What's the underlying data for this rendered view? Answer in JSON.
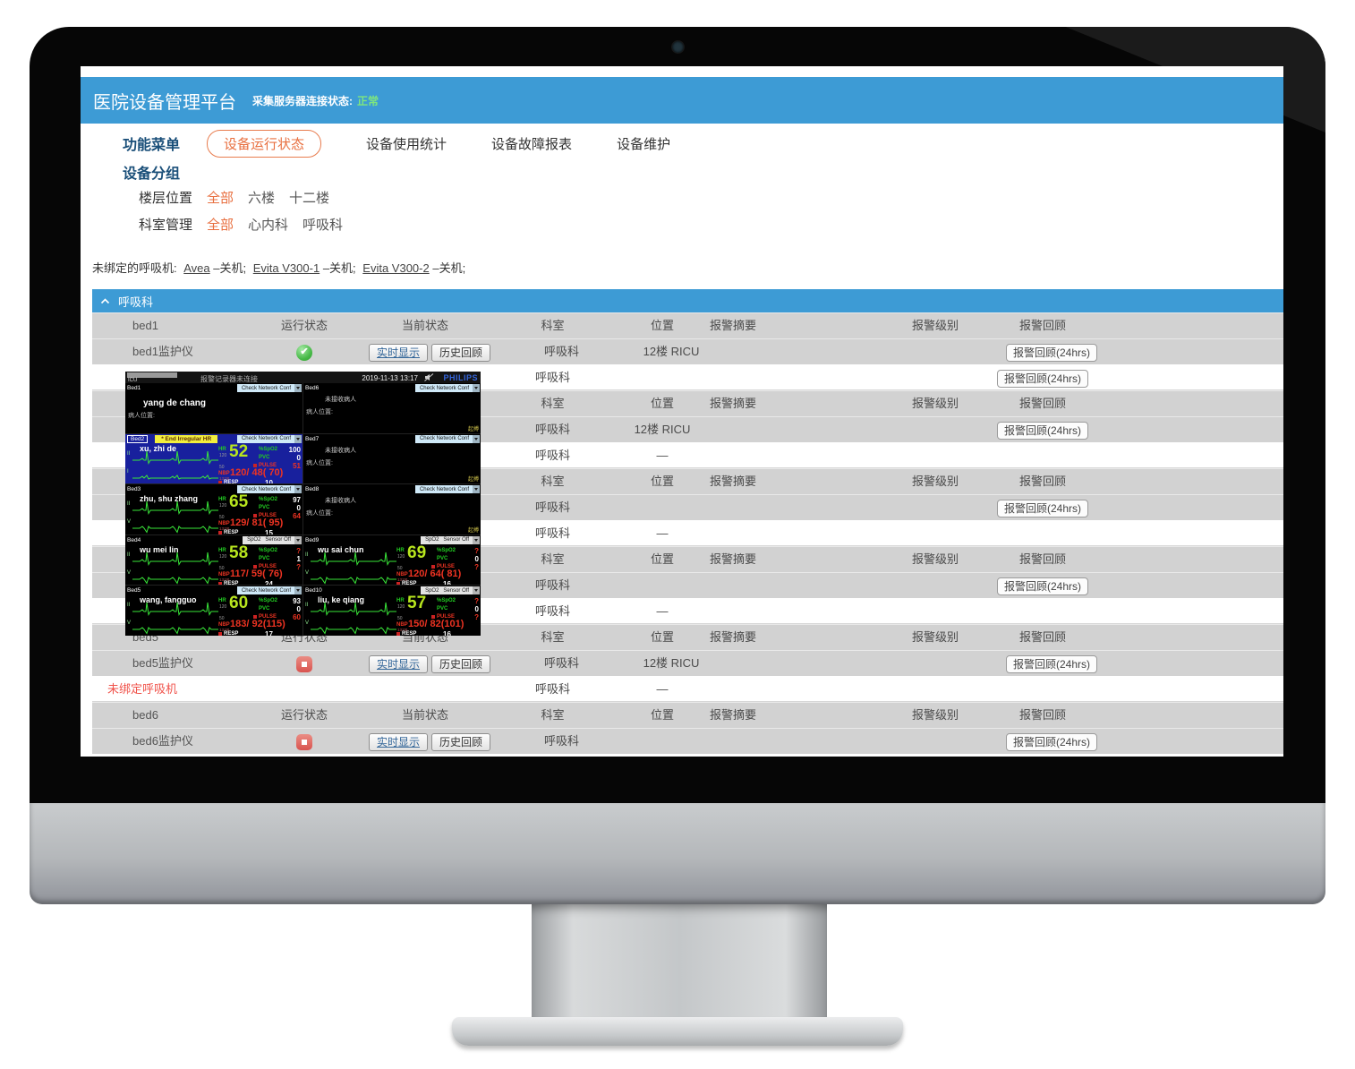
{
  "app": {
    "title": "医院设备管理平台",
    "server_status_label": "采集服务器连接状态:",
    "server_status_value": "正常",
    "colors": {
      "header_blue": "#3d9bd5",
      "accent_orange": "#e86f3f",
      "status_green": "#7ee67e",
      "alert_red": "#f0524a"
    }
  },
  "nav": {
    "menu_label": "功能菜单",
    "tabs": [
      {
        "label": "设备运行状态",
        "active": true
      },
      {
        "label": "设备使用统计",
        "active": false
      },
      {
        "label": "设备故障报表",
        "active": false
      },
      {
        "label": "设备维护",
        "active": false
      }
    ]
  },
  "grouping": {
    "title": "设备分组",
    "filters": [
      {
        "label": "楼层位置",
        "options": [
          {
            "label": "全部",
            "active": true
          },
          {
            "label": "六楼",
            "active": false
          },
          {
            "label": "十二楼",
            "active": false
          }
        ]
      },
      {
        "label": "科室管理",
        "options": [
          {
            "label": "全部",
            "active": true
          },
          {
            "label": "心内科",
            "active": false
          },
          {
            "label": "呼吸科",
            "active": false
          }
        ]
      }
    ]
  },
  "unbound": {
    "prefix": "未绑定的呼吸机:",
    "items": [
      {
        "name": "Avea",
        "state": "–关机;"
      },
      {
        "name": "Evita V300-1",
        "state": "–关机;"
      },
      {
        "name": "Evita V300-2",
        "state": "–关机;"
      }
    ]
  },
  "section": {
    "label": "呼吸科"
  },
  "table": {
    "columns": {
      "status": "运行状态",
      "current": "当前状态",
      "dept": "科室",
      "loc": "位置",
      "alarm_summary": "报警摘要",
      "alarm_level": "报警级别",
      "alarm_review": "报警回顾"
    },
    "buttons": {
      "realtime": "实时显示",
      "history": "历史回顾",
      "review24": "报警回顾(24hrs)"
    },
    "rows": [
      {
        "kind": "header",
        "name": "bed1"
      },
      {
        "kind": "device",
        "name": "bed1监护仪",
        "icon": "ok",
        "buttons": true,
        "dept": "呼吸科",
        "loc": "12楼 RICU",
        "review": true,
        "red": false
      },
      {
        "kind": "vent",
        "name": "",
        "dept": "呼吸科",
        "loc": "",
        "review": true,
        "red": false
      },
      {
        "kind": "header",
        "name": ""
      },
      {
        "kind": "device",
        "name": "",
        "icon": null,
        "buttons": false,
        "dept": "呼吸科",
        "loc": "12楼 RICU",
        "review": true,
        "red": false
      },
      {
        "kind": "vent",
        "name": "",
        "dept": "呼吸科",
        "loc": "—",
        "review": false,
        "red": false
      },
      {
        "kind": "header",
        "name": ""
      },
      {
        "kind": "device",
        "name": "",
        "icon": null,
        "buttons": false,
        "dept": "呼吸科",
        "loc": "",
        "review": true,
        "red": false
      },
      {
        "kind": "vent",
        "name": "",
        "dept": "呼吸科",
        "loc": "—",
        "review": false,
        "red": false
      },
      {
        "kind": "header",
        "name": ""
      },
      {
        "kind": "device",
        "name": "",
        "icon": null,
        "buttons": false,
        "dept": "呼吸科",
        "loc": "",
        "review": true,
        "red": false
      },
      {
        "kind": "vent",
        "name": "",
        "dept": "呼吸科",
        "loc": "—",
        "review": false,
        "red": false
      },
      {
        "kind": "header",
        "name": "bed5"
      },
      {
        "kind": "device",
        "name": "bed5监护仪",
        "icon": "stop",
        "buttons": true,
        "dept": "呼吸科",
        "loc": "12楼 RICU",
        "review": true,
        "red": false
      },
      {
        "kind": "vent",
        "name": "未绑定呼吸机",
        "dept": "呼吸科",
        "loc": "—",
        "review": false,
        "red": true
      },
      {
        "kind": "header",
        "name": "bed6"
      },
      {
        "kind": "device",
        "name": "bed6监护仪",
        "icon": "stop",
        "buttons": true,
        "dept": "呼吸科",
        "loc": "",
        "review": true,
        "red": false
      }
    ]
  },
  "monitor": {
    "topbar": {
      "unit": "ICU",
      "center": "报警记录器未连接",
      "datetime": "2019-11-13 13:17",
      "brand": "PHILIPS"
    },
    "vital_labels": {
      "hr": "HR",
      "spo2": "%SpO2",
      "pvc": "PVC",
      "pulse": "PULSE",
      "nbp": "NBP",
      "resp": "RESP"
    },
    "beds": [
      {
        "id": "Bed1",
        "type": "named",
        "dropdown": "Check Network Conf",
        "dropdown_style": "blue",
        "name": "yang de chang",
        "location_label": "病人位置:"
      },
      {
        "id": "Bed6",
        "type": "empty",
        "dropdown": "Check Network Conf",
        "dropdown_style": "blue",
        "empty_text": "未接收病人",
        "location_label": "病人位置:",
        "corner": "起搏"
      },
      {
        "id": "Bed2",
        "type": "vitals",
        "selected": true,
        "alarm": "* End Irregular HR",
        "dropdown": "Check Network Conf",
        "dropdown_style": "blue",
        "name": "xu, zhi de",
        "leads": [
          "II",
          "I"
        ],
        "hr": "52",
        "hr_limits": [
          "120",
          "50"
        ],
        "spo2": "100",
        "pvc": "0",
        "pulse": "51",
        "nbp": "120/ 48( 70)",
        "nbp_time": "13:00",
        "resp": "10"
      },
      {
        "id": "Bed7",
        "type": "empty",
        "dropdown": "Check Network Conf",
        "dropdown_style": "blue",
        "empty_text": "未接收病人",
        "location_label": "病人位置:",
        "corner": "起搏"
      },
      {
        "id": "Bed3",
        "type": "vitals",
        "selected": false,
        "alarm": null,
        "dropdown": "Check Network Conf",
        "dropdown_style": "blue",
        "name": "zhu, shu zhang",
        "leads": [
          "II",
          "V"
        ],
        "hr": "65",
        "hr_limits": [
          "120",
          "50"
        ],
        "spo2": "97",
        "pvc": "0",
        "pulse": "64",
        "nbp": "129/ 81( 95)",
        "nbp_time": "13:00",
        "resp": "15"
      },
      {
        "id": "Bed8",
        "type": "empty",
        "dropdown": "Check Network Conf",
        "dropdown_style": "blue",
        "empty_text": "未接收病人",
        "location_label": "病人位置:",
        "corner": "起搏"
      },
      {
        "id": "Bed4",
        "type": "vitals",
        "selected": false,
        "alarm": null,
        "dropdown": "SpO2   Sensor Off",
        "dropdown_style": "gray",
        "name": "wu mei lin",
        "leads": [
          "II",
          "V"
        ],
        "hr": "58",
        "hr_limits": [
          "120",
          "50"
        ],
        "spo2": "?",
        "pvc": "1",
        "pulse": "?",
        "nbp": "117/ 59( 76)",
        "nbp_time": "13:00",
        "resp": "24"
      },
      {
        "id": "Bed9",
        "type": "vitals",
        "selected": false,
        "alarm": null,
        "dropdown": "SpO2   Sensor Off",
        "dropdown_style": "gray",
        "name": "wu sai chun",
        "leads": [
          "II",
          "V"
        ],
        "hr": "69",
        "hr_limits": [
          "120",
          "50"
        ],
        "spo2": "?",
        "pvc": "0",
        "pulse": "?",
        "nbp": "120/ 64( 81)",
        "nbp_time": "13:00",
        "resp": "16"
      },
      {
        "id": "Bed5",
        "type": "vitals",
        "selected": false,
        "alarm": null,
        "dropdown": "Check Network Conf",
        "dropdown_style": "blue",
        "name": "wang, fangguo",
        "leads": [
          "II",
          "V"
        ],
        "hr": "60",
        "hr_limits": [
          "120",
          "50"
        ],
        "spo2": "93",
        "pvc": "0",
        "pulse": "60",
        "nbp": "183/ 92(115)",
        "nbp_time": "13:00",
        "resp": "17"
      },
      {
        "id": "Bed10",
        "type": "vitals",
        "selected": false,
        "alarm": null,
        "dropdown": "SpO2   Sensor Off",
        "dropdown_style": "gray",
        "name": "liu, ke qiang",
        "leads": [
          "II",
          "V"
        ],
        "hr": "57",
        "hr_limits": [
          "120",
          "50"
        ],
        "spo2": "?",
        "pvc": "0",
        "pulse": "?",
        "nbp": "150/ 82(101)",
        "nbp_time": "13:00",
        "resp": "16"
      }
    ]
  }
}
